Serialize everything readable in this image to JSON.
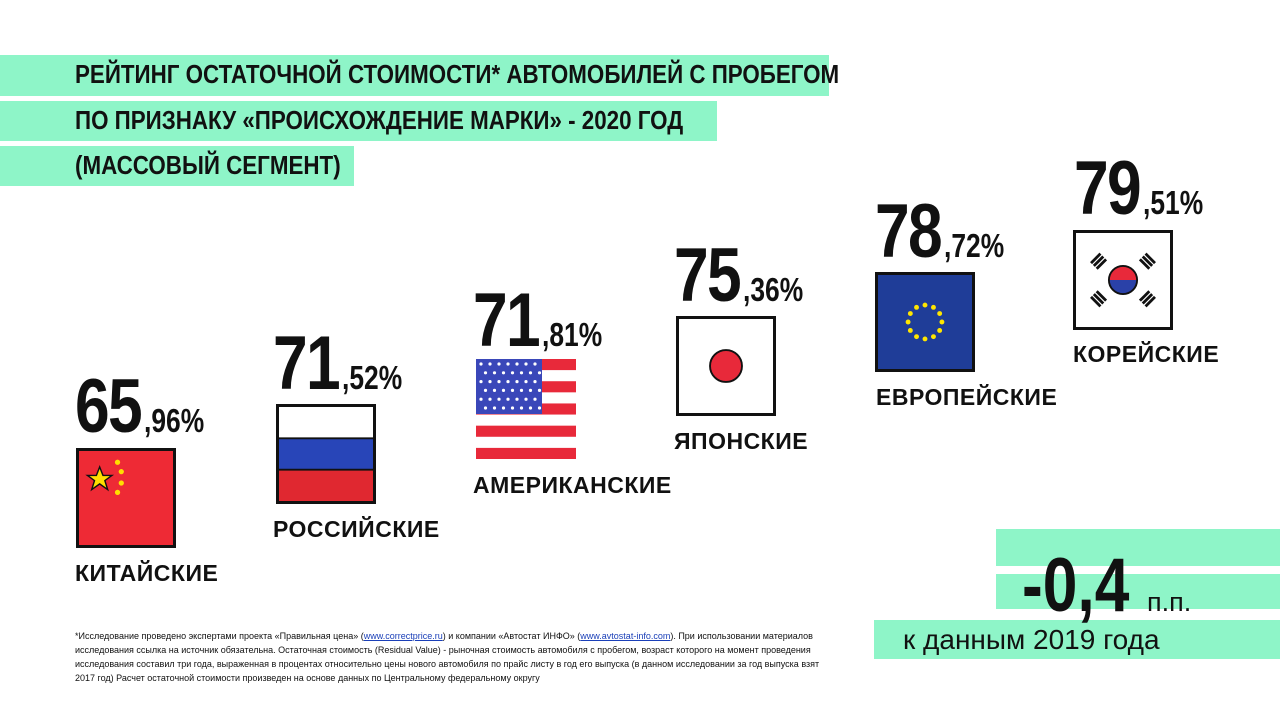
{
  "title": {
    "line1": "РЕЙТИНГ ОСТАТОЧНОЙ СТОИМОСТИ* АВТОМОБИЛЕЙ С ПРОБЕГОМ",
    "line2": "ПО ПРИЗНАКУ «ПРОИСХОЖДЕНИЕ МАРКИ» - 2020 ГОД",
    "line3": "(МАССОВЫЙ СЕГМЕНТ)"
  },
  "chart_data": {
    "type": "bar",
    "title": "РЕЙТИНГ ОСТАТОЧНОЙ СТОИМОСТИ* АВТОМОБИЛЕЙ С ПРОБЕГОМ ПО ПРИЗНАКУ «ПРОИСХОЖДЕНИЕ МАРКИ» - 2020 ГОД (МАССОВЫЙ СЕГМЕНТ)",
    "categories": [
      "КИТАЙСКИЕ",
      "РОССИЙСКИЕ",
      "АМЕРИКАНСКИЕ",
      "ЯПОНСКИЕ",
      "ЕВРОПЕЙСКИЕ",
      "КОРЕЙСКИЕ"
    ],
    "values": [
      65.96,
      71.52,
      71.81,
      75.36,
      78.72,
      79.51
    ],
    "unit": "%",
    "items": [
      {
        "label": "КИТАЙСКИЕ",
        "int": "65",
        "dec": ",96%",
        "flag": "china-flag-icon"
      },
      {
        "label": "РОССИЙСКИЕ",
        "int": "71",
        "dec": ",52%",
        "flag": "russia-flag-icon"
      },
      {
        "label": "АМЕРИКАНСКИЕ",
        "int": "71",
        "dec": ",81%",
        "flag": "usa-flag-icon"
      },
      {
        "label": "ЯПОНСКИЕ",
        "int": "75",
        "dec": ",36%",
        "flag": "japan-flag-icon"
      },
      {
        "label": "ЕВРОПЕЙСКИЕ",
        "int": "78",
        "dec": ",72%",
        "flag": "eu-flag-icon"
      },
      {
        "label": "КОРЕЙСКИЕ",
        "int": "79",
        "dec": ",51%",
        "flag": "korea-flag-icon"
      }
    ]
  },
  "summary": {
    "delta": "-0,4",
    "unit": "п.п.",
    "compare": "к данным 2019 года"
  },
  "footnote": {
    "part1": "*Исследование проведено экспертами проекта «Правильная цена» (",
    "link1": "www.correctprice.ru",
    "part2": ") и компании «Автостат ИНФО» (",
    "link2": "www.avtostat-info.com",
    "part3": "). При использовании материалов исследования ссылка на источник обязательна. Остаточная стоимость (Residual Value) - рыночная стоимость автомобиля с пробегом, возраст которого на момент проведения исследования составил три года, выраженная в процентах относительно цены нового автомобиля по прайс листу в год его выпуска (в данном исследовании за год выпуска взят 2017 год) Расчет остаточной стоимости произведен на основе данных по Центральному федеральному округу"
  },
  "colors": {
    "accent": "#8ef5c8",
    "china_red": "#ee2a35",
    "china_yellow": "#ffde00",
    "russia_blue": "#2845b8",
    "russia_red": "#e02830",
    "usa_blue": "#3a47b9",
    "usa_red": "#e8293a",
    "japan_red": "#e8293a",
    "eu_blue": "#1f3d98",
    "eu_yellow": "#ffe600",
    "korea_red": "#e8293a",
    "korea_blue": "#2a41a8"
  }
}
